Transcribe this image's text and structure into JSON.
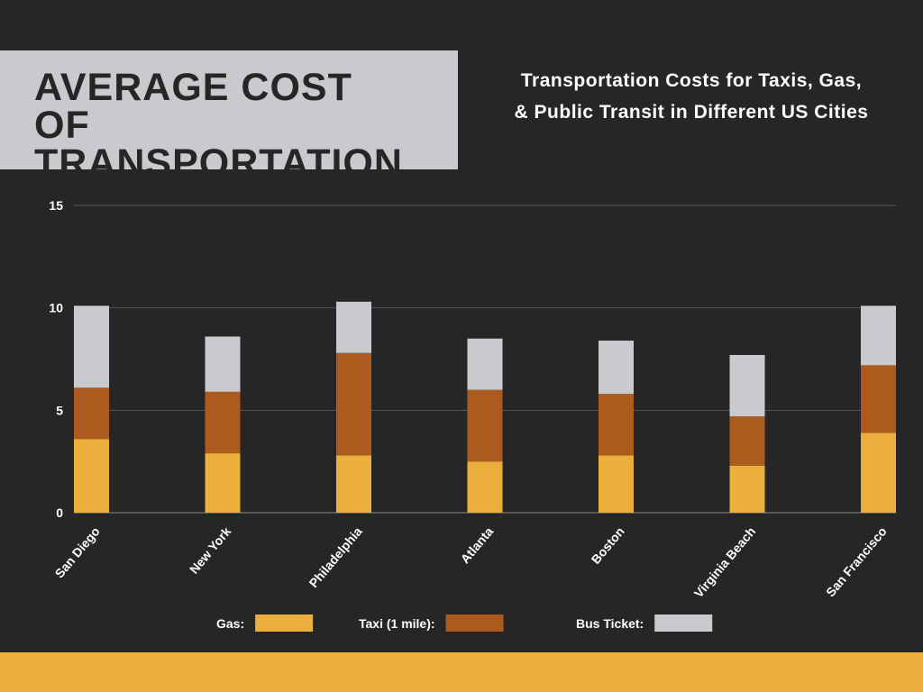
{
  "chart_data": {
    "type": "stacked_bar",
    "title": "AVERAGE COST OF TRANSPORTATION",
    "subtitle": "Transportation Costs for Taxis, Gas, & Public Transit in Different US Cities",
    "categories": [
      "San Diego",
      "New York",
      "Philadelphia",
      "Atlanta",
      "Boston",
      "Virginia Beach",
      "San Francisco"
    ],
    "series": [
      {
        "name": "Gas:",
        "color": "#ebb03b",
        "values": [
          3.6,
          2.9,
          2.8,
          2.5,
          2.8,
          2.3,
          3.9
        ]
      },
      {
        "name": "Taxi (1 mile):",
        "color": "#ad5a1f",
        "values": [
          2.5,
          3.0,
          5.0,
          3.5,
          3.0,
          2.4,
          3.3
        ]
      },
      {
        "name": "Bus Ticket:",
        "color": "#c9cacd",
        "values": [
          4.0,
          2.7,
          2.5,
          2.5,
          2.6,
          3.0,
          2.9
        ]
      }
    ],
    "ylim": [
      0,
      15
    ],
    "yticks": [
      0,
      5,
      10,
      15
    ],
    "grid": true
  }
}
